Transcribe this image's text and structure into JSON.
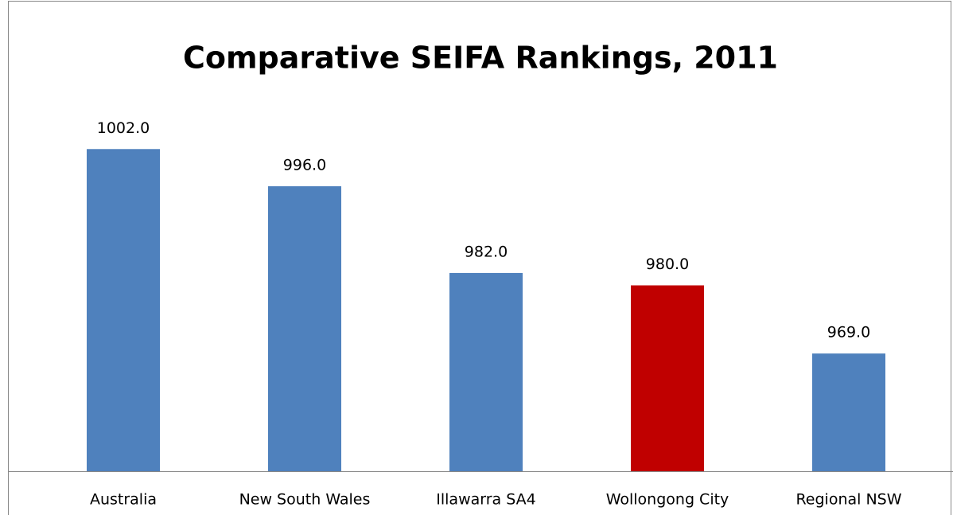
{
  "chart_data": {
    "type": "bar",
    "title": "Comparative SEIFA Rankings, 2011",
    "categories": [
      "Australia",
      "New South Wales",
      "Illawarra SA4",
      "Wollongong City",
      "Regional NSW"
    ],
    "values": [
      1002,
      996,
      982,
      980,
      969
    ],
    "value_labels": [
      "1002.0",
      "996.0",
      "982.0",
      "980.0",
      "969.0"
    ],
    "colors": [
      "#4f81bd",
      "#4f81bd",
      "#4f81bd",
      "#c00000",
      "#4f81bd"
    ],
    "ylim": [
      950,
      1010
    ]
  }
}
